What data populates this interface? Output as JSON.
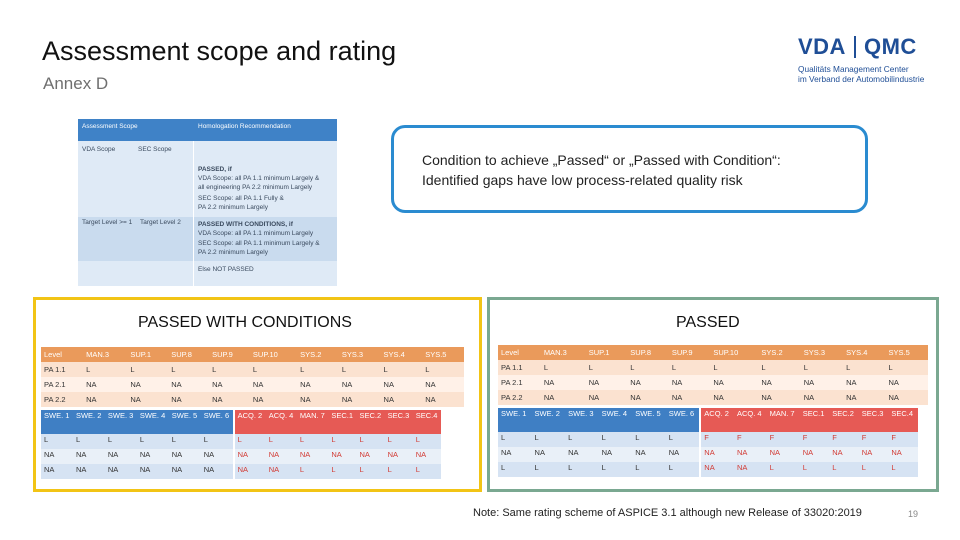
{
  "title": "Assessment scope and rating",
  "subtitle": "Annex D",
  "logo": {
    "left": "VDA",
    "right": "QMC",
    "line1": "Qualitäts Management Center",
    "line2": "im Verband der Automobilindustrie"
  },
  "homologation_table": {
    "headers": [
      "Assessment Scope",
      "Homologation Recommendation"
    ],
    "sub_headers": [
      "VDA Scope",
      "SEC Scope"
    ],
    "rows": [
      "PASSED, if",
      "VDA Scope: all PA 1.1 minimum Largely &",
      "all engineering PA 2.2 minimum Largely",
      "SEC Scope: all PA 1.1 Fully &",
      "PA 2.2 minimum Largely",
      "PASSED WITH CONDITIONS, if",
      "VDA Scope: all PA 1.1 minimum Largely",
      "SEC Scope: all PA 1.1 minimum Largely &",
      "PA 2.2 minimum Largely",
      "Else NOT PASSED"
    ],
    "target_levels": [
      "Target Level >= 1",
      "Target Level 2"
    ]
  },
  "callout": {
    "line1": "Condition to achieve „Passed“ or „Passed with Condition“:",
    "line2": "Identified gaps have low process-related quality risk"
  },
  "panels": [
    {
      "title": "PASSED WITH CONDITIONS",
      "table1": {
        "header": [
          "Level",
          "MAN.3",
          "SUP.1",
          "SUP.8",
          "SUP.9",
          "SUP.10",
          "SYS.2",
          "SYS.3",
          "SYS.4",
          "SYS.5"
        ],
        "rows": [
          [
            "PA 1.1",
            "L",
            "L",
            "L",
            "L",
            "L",
            "L",
            "L",
            "L",
            "L"
          ],
          [
            "PA 2.1",
            "NA",
            "NA",
            "NA",
            "NA",
            "NA",
            "NA",
            "NA",
            "NA",
            "NA"
          ],
          [
            "PA 2.2",
            "NA",
            "NA",
            "NA",
            "NA",
            "NA",
            "NA",
            "NA",
            "NA",
            "NA"
          ]
        ]
      },
      "table2": {
        "header": [
          "SWE. 1",
          "SWE. 2",
          "SWE. 3",
          "SWE. 4",
          "SWE. 5",
          "SWE. 6",
          "ACQ. 2",
          "ACQ. 4",
          "MAN. 7",
          "SEC.1",
          "SEC.2",
          "SEC.3",
          "SEC.4"
        ],
        "rows": [
          [
            "L",
            "L",
            "L",
            "L",
            "L",
            "L",
            "L",
            "L",
            "L",
            "L",
            "L",
            "L",
            "L"
          ],
          [
            "NA",
            "NA",
            "NA",
            "NA",
            "NA",
            "NA",
            "NA",
            "NA",
            "NA",
            "NA",
            "NA",
            "NA",
            "NA"
          ],
          [
            "NA",
            "NA",
            "NA",
            "NA",
            "NA",
            "NA",
            "NA",
            "NA",
            "L",
            "L",
            "L",
            "L",
            "L"
          ]
        ]
      }
    },
    {
      "title": "PASSED",
      "table1": {
        "header": [
          "Level",
          "MAN.3",
          "SUP.1",
          "SUP.8",
          "SUP.9",
          "SUP.10",
          "SYS.2",
          "SYS.3",
          "SYS.4",
          "SYS.5"
        ],
        "rows": [
          [
            "PA 1.1",
            "L",
            "L",
            "L",
            "L",
            "L",
            "L",
            "L",
            "L",
            "L"
          ],
          [
            "PA 2.1",
            "NA",
            "NA",
            "NA",
            "NA",
            "NA",
            "NA",
            "NA",
            "NA",
            "NA"
          ],
          [
            "PA 2.2",
            "NA",
            "NA",
            "NA",
            "NA",
            "NA",
            "NA",
            "NA",
            "NA",
            "NA"
          ]
        ]
      },
      "table2": {
        "header": [
          "SWE. 1",
          "SWE. 2",
          "SWE. 3",
          "SWE. 4",
          "SWE. 5",
          "SWE. 6",
          "ACQ. 2",
          "ACQ. 4",
          "MAN. 7",
          "SEC.1",
          "SEC.2",
          "SEC.3",
          "SEC.4"
        ],
        "rows": [
          [
            "L",
            "L",
            "L",
            "L",
            "L",
            "L",
            "F",
            "F",
            "F",
            "F",
            "F",
            "F",
            "F"
          ],
          [
            "NA",
            "NA",
            "NA",
            "NA",
            "NA",
            "NA",
            "NA",
            "NA",
            "NA",
            "NA",
            "NA",
            "NA",
            "NA"
          ],
          [
            "L",
            "L",
            "L",
            "L",
            "L",
            "L",
            "NA",
            "NA",
            "L",
            "L",
            "L",
            "L",
            "L"
          ]
        ]
      }
    }
  ],
  "note": "Note: Same rating scheme of ASPICE 3.1 although new Release of 33020:2019",
  "page_number": "19",
  "colors": {
    "yellow_frame": "#f2c415",
    "green_frame": "#7aa891",
    "callout_border": "#2a8bd0",
    "orange_header": "#ea9a5b",
    "blue_header": "#3f7fc4",
    "red_header": "#e65a55"
  }
}
